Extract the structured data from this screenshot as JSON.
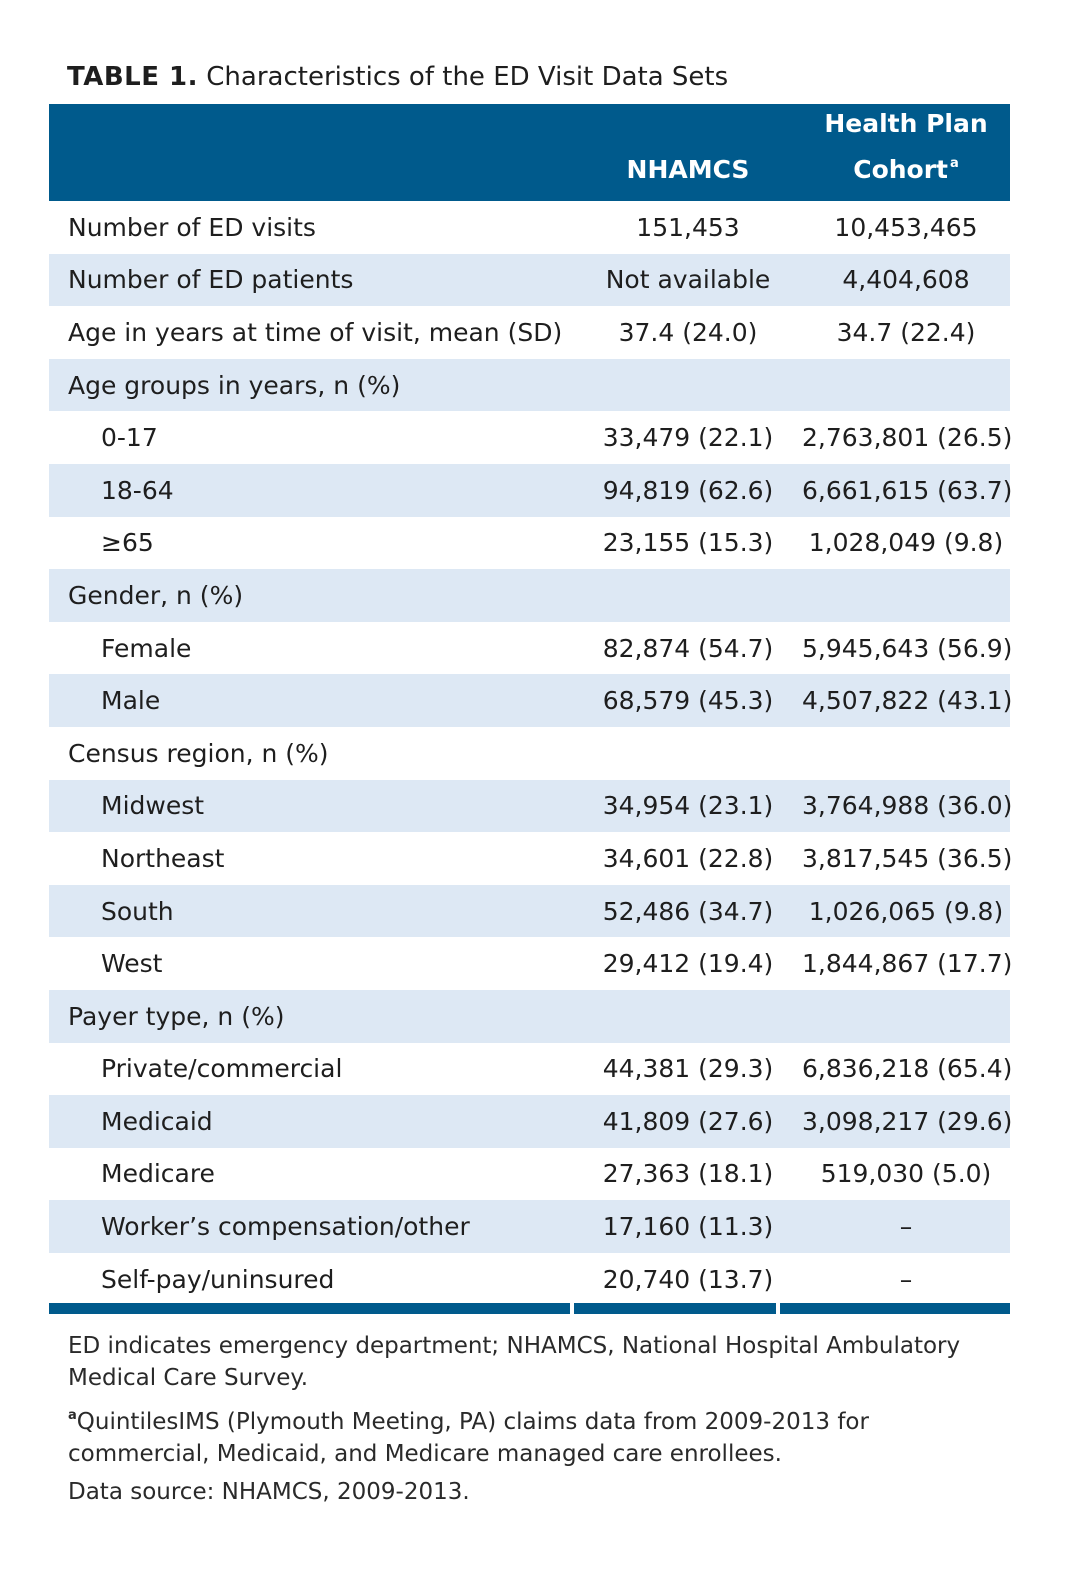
{
  "table_label": "TABLE 1.",
  "table_title": "Characteristics of the ED Visit Data Sets",
  "header": {
    "col_nhamcs": "NHAMCS",
    "col_health_plan_line1": "Health Plan",
    "col_health_plan_line2": "Cohort",
    "col_health_plan_sup": "a"
  },
  "rows": [
    {
      "label": "Number of ED visits",
      "nhamcs": "151,453",
      "health_plan": "10,453,465"
    },
    {
      "label": "Number of ED patients",
      "nhamcs": "Not available",
      "health_plan": "4,404,608"
    },
    {
      "label": "Age in years at time of visit, mean (SD)",
      "nhamcs": "37.4 (24.0)",
      "health_plan": "34.7 (22.4)"
    },
    {
      "label": "Age groups in years, n (%)",
      "nhamcs": "",
      "health_plan": ""
    },
    {
      "label": "0-17",
      "nhamcs": "33,479 (22.1)",
      "health_plan": "2,763,801 (26.5)"
    },
    {
      "label": "18-64",
      "nhamcs": "94,819 (62.6)",
      "health_plan": "6,661,615 (63.7)"
    },
    {
      "label": "≥65",
      "nhamcs": "23,155 (15.3)",
      "health_plan": "1,028,049 (9.8)"
    },
    {
      "label": "Gender, n (%)",
      "nhamcs": "",
      "health_plan": ""
    },
    {
      "label": "Female",
      "nhamcs": "82,874 (54.7)",
      "health_plan": "5,945,643 (56.9)"
    },
    {
      "label": "Male",
      "nhamcs": "68,579 (45.3)",
      "health_plan": "4,507,822 (43.1)"
    },
    {
      "label": "Census region, n (%)",
      "nhamcs": "",
      "health_plan": ""
    },
    {
      "label": "Midwest",
      "nhamcs": "34,954 (23.1)",
      "health_plan": "3,764,988 (36.0)"
    },
    {
      "label": "Northeast",
      "nhamcs": "34,601 (22.8)",
      "health_plan": "3,817,545 (36.5)"
    },
    {
      "label": "South",
      "nhamcs": "52,486 (34.7)",
      "health_plan": "1,026,065 (9.8)"
    },
    {
      "label": "West",
      "nhamcs": "29,412 (19.4)",
      "health_plan": "1,844,867 (17.7)"
    },
    {
      "label": "Payer type, n (%)",
      "nhamcs": "",
      "health_plan": ""
    },
    {
      "label": "Private/commercial",
      "nhamcs": "44,381 (29.3)",
      "health_plan": "6,836,218 (65.4)"
    },
    {
      "label": "Medicaid",
      "nhamcs": "41,809 (27.6)",
      "health_plan": "3,098,217 (29.6)"
    },
    {
      "label": "Medicare",
      "nhamcs": "27,363 (18.1)",
      "health_plan": "519,030 (5.0)"
    },
    {
      "label": "Worker’s compensation/other",
      "nhamcs": "17,160 (11.3)",
      "health_plan": "–"
    },
    {
      "label": "Self-pay/uninsured",
      "nhamcs": "20,740 (13.7)",
      "health_plan": "–"
    }
  ],
  "notes": {
    "abbreviations": "ED indicates emergency department; NHAMCS, National Hospital Ambulatory Medical Care Survey.",
    "footnote_marker": "a",
    "footnote_a": "QuintilesIMS (Plymouth Meeting, PA) claims data from 2009-2013 for commercial, Medicaid, and Medicare managed care enrollees.",
    "data_source": "Data source: NHAMCS, 2009-2013."
  },
  "colors": {
    "header_bg": "#005a8c",
    "stripe_bg": "#dde8f4"
  }
}
